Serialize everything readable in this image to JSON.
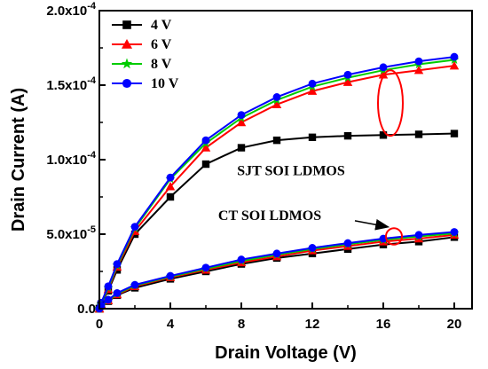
{
  "chart_data": {
    "type": "line",
    "xlabel": "Drain Voltage (V)",
    "ylabel": "Drain Current (A)",
    "xlim": [
      0,
      21
    ],
    "ylim": [
      0,
      0.0002
    ],
    "xticks": [
      0,
      4,
      8,
      12,
      16,
      20
    ],
    "xtick_labels": [
      "0",
      "4",
      "8",
      "12",
      "16",
      "20"
    ],
    "yticks": [
      0,
      5e-05,
      0.0001,
      0.00015,
      0.0002
    ],
    "ytick_labels": [
      "0.0",
      "5.0x10",
      "1.0x10",
      "1.5x10",
      "2.0x10"
    ],
    "ytick_exponents": [
      "",
      "-5",
      "-4",
      "-4",
      "-4"
    ],
    "grid": false,
    "legend_position": "top-left",
    "x": [
      0,
      0.1,
      0.5,
      1,
      2,
      4,
      6,
      8,
      10,
      12,
      14,
      16,
      18,
      20
    ],
    "series": [
      {
        "name": "4 V",
        "group": "SJT SOI LDMOS",
        "color": "#000000",
        "marker": "square",
        "values": [
          0,
          3e-06,
          1.2e-05,
          2.6e-05,
          5e-05,
          7.5e-05,
          9.7e-05,
          0.000108,
          0.000113,
          0.000115,
          0.000116,
          0.0001165,
          0.000117,
          0.0001175
        ]
      },
      {
        "name": "6 V",
        "group": "SJT SOI LDMOS",
        "color": "#ff0000",
        "marker": "triangle",
        "values": [
          0,
          3e-06,
          1.3e-05,
          2.8e-05,
          5.2e-05,
          8.2e-05,
          0.000108,
          0.000125,
          0.000137,
          0.000146,
          0.000152,
          0.000157,
          0.00016,
          0.000163
        ]
      },
      {
        "name": "8 V",
        "group": "SJT SOI LDMOS",
        "color": "#00cc00",
        "marker": "star",
        "values": [
          0,
          3e-06,
          1.4e-05,
          2.9e-05,
          5.4e-05,
          8.7e-05,
          0.000111,
          0.000128,
          0.00014,
          0.000149,
          0.000155,
          0.00016,
          0.000164,
          0.000167
        ]
      },
      {
        "name": "10 V",
        "group": "SJT SOI LDMOS",
        "color": "#0000ff",
        "marker": "circle",
        "values": [
          0,
          4e-06,
          1.5e-05,
          3e-05,
          5.5e-05,
          8.8e-05,
          0.000113,
          0.00013,
          0.000142,
          0.000151,
          0.000157,
          0.000162,
          0.000166,
          0.000169
        ]
      },
      {
        "name": "4 V",
        "group": "CT SOI LDMOS",
        "color": "#000000",
        "marker": "square",
        "values": [
          0,
          2e-06,
          5e-06,
          9e-06,
          1.4e-05,
          2e-05,
          2.5e-05,
          3e-05,
          3.4e-05,
          3.7e-05,
          4e-05,
          4.3e-05,
          4.5e-05,
          4.8e-05
        ]
      },
      {
        "name": "6 V",
        "group": "CT SOI LDMOS",
        "color": "#ff0000",
        "marker": "triangle",
        "values": [
          0,
          2e-06,
          5.5e-06,
          9.5e-06,
          1.5e-05,
          2.1e-05,
          2.6e-05,
          3.1e-05,
          3.5e-05,
          3.9e-05,
          4.2e-05,
          4.5e-05,
          4.7e-05,
          4.95e-05
        ]
      },
      {
        "name": "8 V",
        "group": "CT SOI LDMOS",
        "color": "#00cc00",
        "marker": "star",
        "values": [
          0,
          2e-06,
          5.8e-06,
          1e-05,
          1.55e-05,
          2.15e-05,
          2.68e-05,
          3.2e-05,
          3.62e-05,
          4e-05,
          4.32e-05,
          4.62e-05,
          4.85e-05,
          5.05e-05
        ]
      },
      {
        "name": "10 V",
        "group": "CT SOI LDMOS",
        "color": "#0000ff",
        "marker": "circle",
        "values": [
          0,
          2e-06,
          6e-06,
          1.05e-05,
          1.6e-05,
          2.2e-05,
          2.75e-05,
          3.3e-05,
          3.7e-05,
          4.08e-05,
          4.4e-05,
          4.7e-05,
          4.95e-05,
          5.15e-05
        ]
      }
    ],
    "legend": [
      {
        "label": "4 V",
        "color": "#000000",
        "marker": "square"
      },
      {
        "label": "6 V",
        "color": "#ff0000",
        "marker": "triangle"
      },
      {
        "label": "8 V",
        "color": "#00cc00",
        "marker": "star"
      },
      {
        "label": "10 V",
        "color": "#0000ff",
        "marker": "circle"
      }
    ],
    "annotations": [
      {
        "text": "SJT SOI LDMOS",
        "anchor_x": 10.8,
        "anchor_y": 8.95e-05
      },
      {
        "text": "CT SOI LDMOS",
        "anchor_x": 9.6,
        "anchor_y": 5.95e-05
      }
    ],
    "ellipses": [
      {
        "cx": 16.4,
        "cy": 0.000138,
        "rx_data": 0.7,
        "ry_data": 2.2e-05,
        "color": "#ff0000"
      },
      {
        "cx": 16.6,
        "cy": 4.85e-05,
        "rx_data": 0.45,
        "ry_data": 5.5e-06,
        "color": "#ff0000"
      }
    ],
    "arrows": [
      {
        "from_x": 14.4,
        "from_y": 5.9e-05,
        "to_x": 16.2,
        "to_y": 5.5e-05,
        "color": "#000000"
      }
    ]
  }
}
